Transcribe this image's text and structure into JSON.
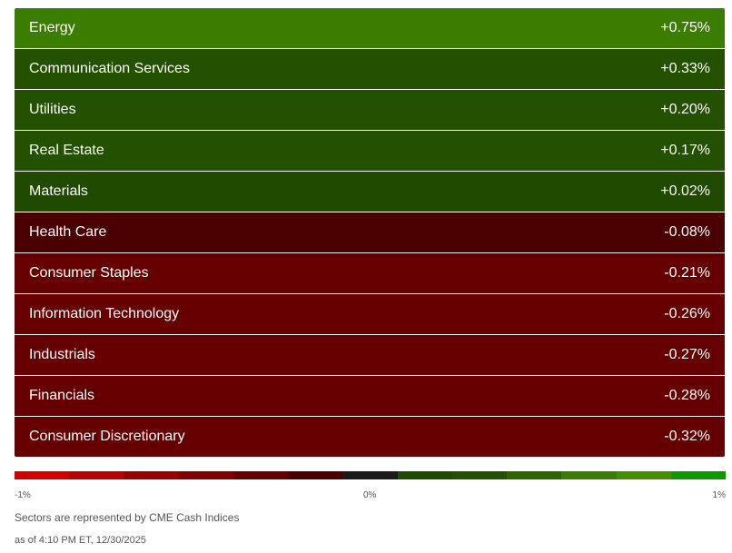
{
  "sectors": [
    {
      "name": "Energy",
      "change": "+0.75%",
      "color": "#3a7d00"
    },
    {
      "name": "Communication Services",
      "change": "+0.33%",
      "color": "#235100"
    },
    {
      "name": "Utilities",
      "change": "+0.20%",
      "color": "#235100"
    },
    {
      "name": "Real Estate",
      "change": "+0.17%",
      "color": "#235100"
    },
    {
      "name": "Materials",
      "change": "+0.02%",
      "color": "#1f4a00"
    },
    {
      "name": "Health Care",
      "change": "-0.08%",
      "color": "#4a0000"
    },
    {
      "name": "Consumer Staples",
      "change": "-0.21%",
      "color": "#660000"
    },
    {
      "name": "Information Technology",
      "change": "-0.26%",
      "color": "#660000"
    },
    {
      "name": "Industrials",
      "change": "-0.27%",
      "color": "#660000"
    },
    {
      "name": "Financials",
      "change": "-0.28%",
      "color": "#660000"
    },
    {
      "name": "Consumer Discretionary",
      "change": "-0.32%",
      "color": "#660000"
    }
  ],
  "scale": {
    "min_label": "-1%",
    "mid_label": "0%",
    "max_label": "1%",
    "colors": [
      "#d40000",
      "#b80000",
      "#9a0000",
      "#800000",
      "#660000",
      "#4a0000",
      "#1a1a1a",
      "#1f4a00",
      "#235100",
      "#2d6600",
      "#3a7d00",
      "#448f00",
      "#0f9900"
    ]
  },
  "footer": {
    "note": "Sectors are represented by CME Cash Indices",
    "as_of": "as of 4:10 PM ET, 12/30/2025"
  }
}
